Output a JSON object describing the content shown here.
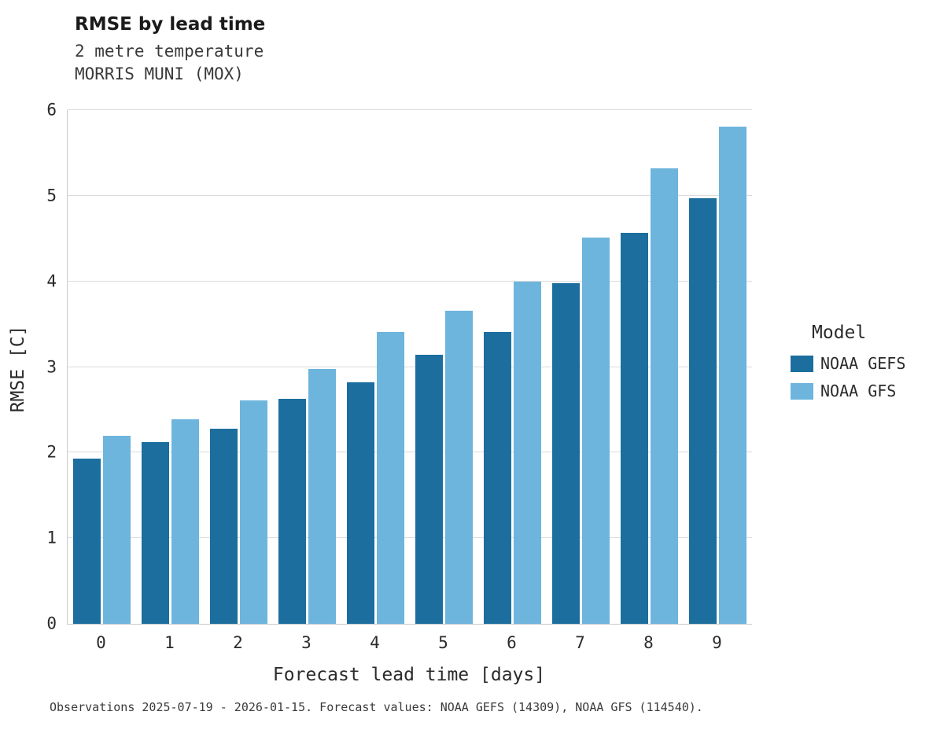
{
  "header": {
    "title": "RMSE by lead time",
    "subtitle_line1": "2 metre temperature",
    "subtitle_line2": "MORRIS MUNI (MOX)"
  },
  "chart_data": {
    "type": "bar",
    "title": "RMSE by lead time",
    "subtitle": "2 metre temperature — MORRIS MUNI (MOX)",
    "categories": [
      "0",
      "1",
      "2",
      "3",
      "4",
      "5",
      "6",
      "7",
      "8",
      "9"
    ],
    "series": [
      {
        "name": "NOAA GEFS",
        "color": "#1b6e9e",
        "values": [
          1.93,
          2.12,
          2.28,
          2.63,
          2.82,
          3.14,
          3.41,
          3.98,
          4.57,
          4.97
        ]
      },
      {
        "name": "NOAA GFS",
        "color": "#6db5dd",
        "values": [
          2.2,
          2.39,
          2.61,
          2.98,
          3.41,
          3.66,
          4.0,
          4.51,
          5.32,
          5.81
        ]
      }
    ],
    "xlabel": "Forecast lead time [days]",
    "ylabel": "RMSE [C]",
    "ylim": [
      0,
      6
    ],
    "yticks": [
      0,
      1,
      2,
      3,
      4,
      5,
      6
    ],
    "grid": true,
    "legend_title": "Model",
    "legend_position": "right"
  },
  "footer": {
    "caption": "Observations 2025-07-19 - 2026-01-15. Forecast values: NOAA GEFS (14309), NOAA GFS (114540)."
  }
}
